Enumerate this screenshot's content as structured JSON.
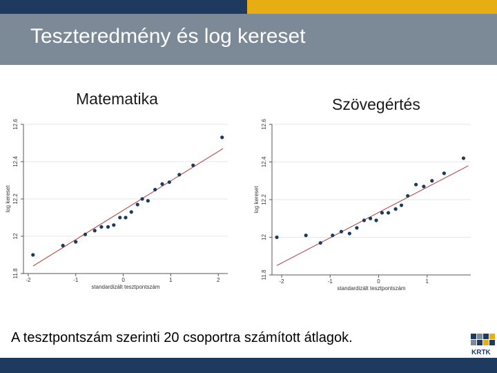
{
  "slide": {
    "title": "Teszteredmény és log kereset",
    "caption": "A tesztpontszám szerinti 20 csoportra számított átlagok.",
    "logo_text": "KRTK",
    "colors": {
      "top_left": "#1f3a5f",
      "top_right": "#e8ad13",
      "title_band": "#7b8a96",
      "bottom_bar": "#1f3a5f"
    }
  },
  "chart_data": [
    {
      "type": "scatter",
      "title": "Matematika",
      "xlabel": "standardizált tesztpontszám",
      "ylabel": "log kereset",
      "xlim": [
        -2.1,
        2.2
      ],
      "ylim": [
        11.8,
        12.6
      ],
      "xticks": [
        -2,
        -1,
        0,
        1,
        2
      ],
      "xtick_labels": [
        "-2",
        "-1",
        "0",
        "1",
        "2"
      ],
      "yticks": [
        11.8,
        12,
        12.2,
        12.4,
        12.6
      ],
      "ytick_labels": [
        "11.8",
        "12",
        "12.2",
        "12.4",
        "12.6"
      ],
      "grid": true,
      "colors": {
        "points": "#1b3a5c",
        "fit": "#b03a3a"
      },
      "points": [
        {
          "x": -1.9,
          "y": 11.9
        },
        {
          "x": -1.27,
          "y": 11.95
        },
        {
          "x": -1.0,
          "y": 11.97
        },
        {
          "x": -0.8,
          "y": 12.01
        },
        {
          "x": -0.6,
          "y": 12.03
        },
        {
          "x": -0.46,
          "y": 12.05
        },
        {
          "x": -0.32,
          "y": 12.05
        },
        {
          "x": -0.2,
          "y": 12.06
        },
        {
          "x": -0.07,
          "y": 12.1
        },
        {
          "x": 0.05,
          "y": 12.1
        },
        {
          "x": 0.17,
          "y": 12.13
        },
        {
          "x": 0.3,
          "y": 12.17
        },
        {
          "x": 0.4,
          "y": 12.2
        },
        {
          "x": 0.52,
          "y": 12.19
        },
        {
          "x": 0.67,
          "y": 12.25
        },
        {
          "x": 0.82,
          "y": 12.28
        },
        {
          "x": 0.97,
          "y": 12.29
        },
        {
          "x": 1.18,
          "y": 12.33
        },
        {
          "x": 1.47,
          "y": 12.38
        },
        {
          "x": 2.08,
          "y": 12.53
        }
      ],
      "fit_line": {
        "x": [
          -1.9,
          2.1
        ],
        "y": [
          11.84,
          12.47
        ]
      }
    },
    {
      "type": "scatter",
      "title": "Szövegértés",
      "xlabel": "standardizált tesztpontszám",
      "ylabel": "log kereset",
      "xlim": [
        -2.2,
        1.9
      ],
      "ylim": [
        11.8,
        12.6
      ],
      "xticks": [
        -2,
        -1,
        0,
        1
      ],
      "xtick_labels": [
        "-2",
        "-1",
        "0",
        "1"
      ],
      "yticks": [
        11.8,
        12,
        12.2,
        12.4,
        12.6
      ],
      "ytick_labels": [
        "11.8",
        "12",
        "12.2",
        "12.4",
        "12.6"
      ],
      "grid": true,
      "colors": {
        "points": "#1b3a5c",
        "fit": "#b03a3a"
      },
      "points": [
        {
          "x": -2.1,
          "y": 12.0
        },
        {
          "x": -1.5,
          "y": 12.01
        },
        {
          "x": -1.2,
          "y": 11.97
        },
        {
          "x": -0.95,
          "y": 12.01
        },
        {
          "x": -0.77,
          "y": 12.03
        },
        {
          "x": -0.6,
          "y": 12.02
        },
        {
          "x": -0.45,
          "y": 12.05
        },
        {
          "x": -0.3,
          "y": 12.09
        },
        {
          "x": -0.17,
          "y": 12.1
        },
        {
          "x": -0.05,
          "y": 12.09
        },
        {
          "x": 0.07,
          "y": 12.13
        },
        {
          "x": 0.2,
          "y": 12.13
        },
        {
          "x": 0.35,
          "y": 12.15
        },
        {
          "x": 0.47,
          "y": 12.17
        },
        {
          "x": 0.6,
          "y": 12.22
        },
        {
          "x": 0.77,
          "y": 12.28
        },
        {
          "x": 0.93,
          "y": 12.27
        },
        {
          "x": 1.1,
          "y": 12.3
        },
        {
          "x": 1.35,
          "y": 12.34
        },
        {
          "x": 1.75,
          "y": 12.42
        }
      ],
      "fit_line": {
        "x": [
          -2.1,
          1.85
        ],
        "y": [
          11.85,
          12.38
        ]
      }
    }
  ]
}
